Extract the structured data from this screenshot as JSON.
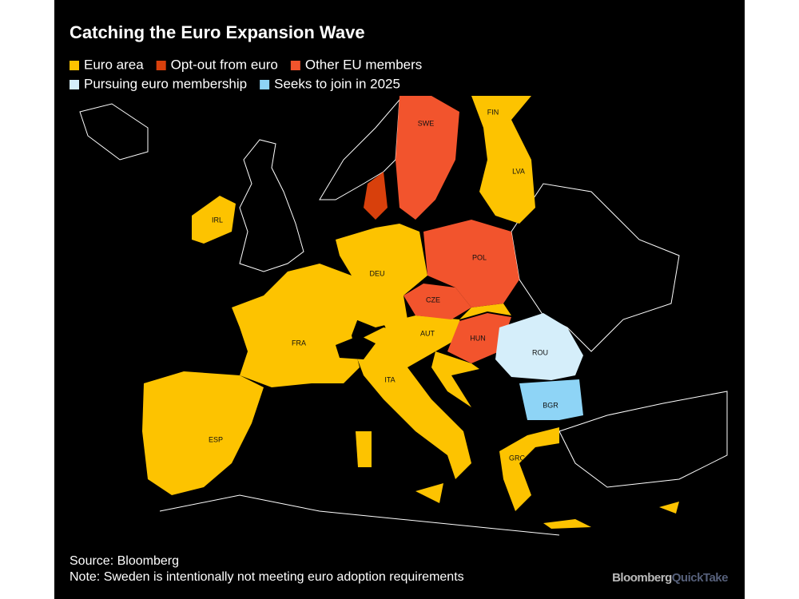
{
  "header": {
    "title": "Catching the Euro Expansion Wave"
  },
  "legend": [
    {
      "label": "Euro area",
      "color": "#fdc300"
    },
    {
      "label": "Opt-out from euro",
      "color": "#d8400c"
    },
    {
      "label": "Other EU members",
      "color": "#f2542d"
    },
    {
      "label": "Pursuing euro membership",
      "color": "#d5eefa"
    },
    {
      "label": "Seeks to join in 2025",
      "color": "#8ed4f6"
    }
  ],
  "countries": [
    "FIN",
    "SWE",
    "LVA",
    "IRL",
    "DEU",
    "POL",
    "CZE",
    "FRA",
    "AUT",
    "HUN",
    "ROU",
    "ITA",
    "BGR",
    "ESP",
    "GRC"
  ],
  "footer": {
    "source": "Source: Bloomberg",
    "note": "Note: Sweden is intentionally not meeting euro adoption requirements"
  },
  "logo": {
    "brand": "Bloomberg",
    "product": "QuickTake"
  }
}
